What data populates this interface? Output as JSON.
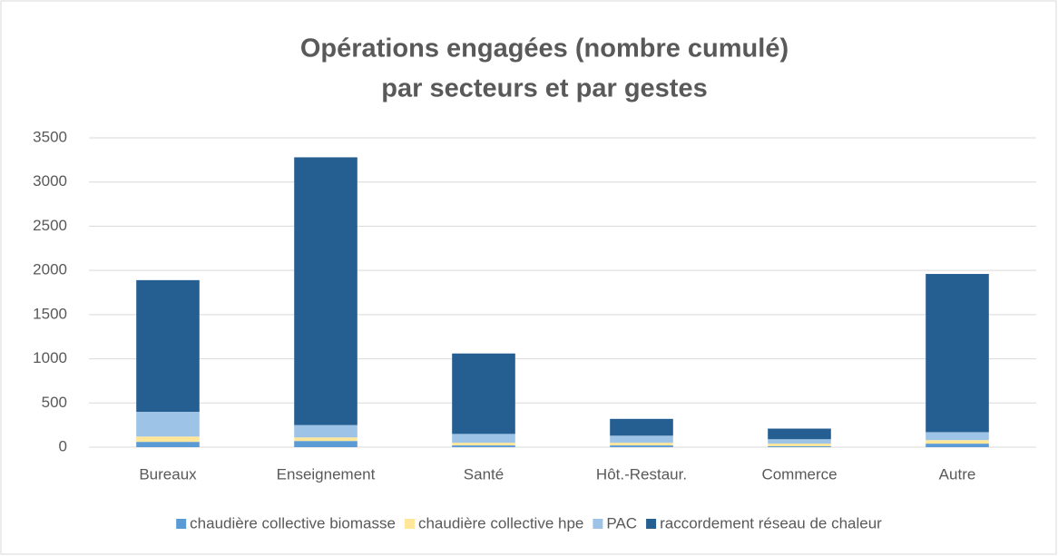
{
  "chart_data": {
    "type": "stacked_bar",
    "title": "Opérations engagées (nombre cumulé)",
    "subtitle": "par secteurs et par gestes",
    "categories": [
      "Bureaux",
      "Enseignement",
      "Santé",
      "Hôt.-Restaur.",
      "Commerce",
      "Autre"
    ],
    "series": [
      {
        "name": "chaudière collective biomasse",
        "color": "#5b9bd5",
        "values": [
          60,
          70,
          20,
          20,
          10,
          40
        ]
      },
      {
        "name": "chaudière collective hpe",
        "color": "#ffe699",
        "values": [
          60,
          40,
          30,
          30,
          30,
          40
        ]
      },
      {
        "name": "PAC",
        "color": "#9dc3e6",
        "values": [
          280,
          140,
          100,
          80,
          50,
          90
        ]
      },
      {
        "name": "raccordement réseau de chaleur",
        "color": "#255e91",
        "values": [
          1490,
          3030,
          910,
          190,
          120,
          1790
        ]
      }
    ],
    "ylim": [
      0,
      3500
    ],
    "yticks": [
      0,
      500,
      1000,
      1500,
      2000,
      2500,
      3000,
      3500
    ],
    "grid": true,
    "legend": "bottom"
  }
}
